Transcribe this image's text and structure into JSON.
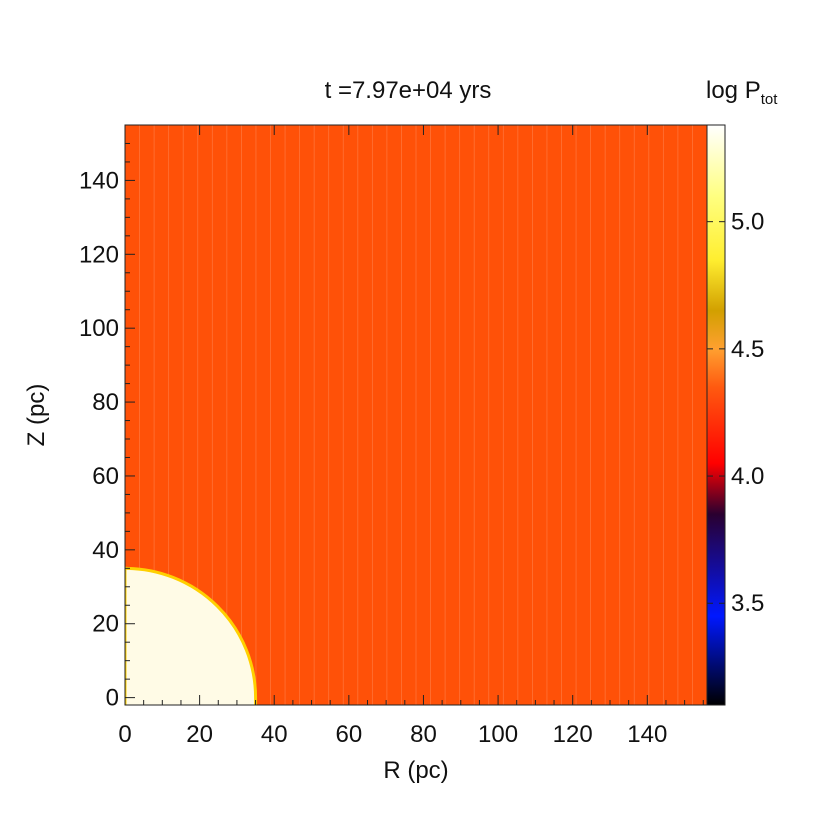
{
  "chart_data": {
    "type": "heatmap",
    "title": "t =7.97e+04 yrs",
    "xlabel": "R (pc)",
    "ylabel": "Z (pc)",
    "xlim": [
      0,
      156
    ],
    "ylim": [
      -2,
      155
    ],
    "x_ticks": [
      0,
      20,
      40,
      60,
      80,
      100,
      120,
      140
    ],
    "y_ticks": [
      0,
      20,
      40,
      60,
      80,
      100,
      120,
      140
    ],
    "field": {
      "background_log_P": 4.33,
      "bubble_log_P": 5.3,
      "bubble_radius": 35,
      "bubble_center": [
        0,
        0
      ],
      "background_color": "#ff5108",
      "bubble_color": "#fffbe6",
      "bubble_edge_color": "#ffd000",
      "stripe_color": "#ff9060",
      "stripe_spacing": 3.9
    },
    "colorbar": {
      "label_main": "log P",
      "label_sub": "tot",
      "range": [
        3.1,
        5.38
      ],
      "ticks": [
        3.5,
        4.0,
        4.5,
        5.0
      ],
      "tick_labels": [
        "3.5",
        "4.0",
        "4.5",
        "5.0"
      ],
      "color_stops": [
        {
          "value": 3.1,
          "color": "#000000"
        },
        {
          "value": 3.45,
          "color": "#0018ff"
        },
        {
          "value": 3.85,
          "color": "#2a0030"
        },
        {
          "value": 4.05,
          "color": "#ff0000"
        },
        {
          "value": 4.35,
          "color": "#ff5a10"
        },
        {
          "value": 4.5,
          "color": "#ffa030"
        },
        {
          "value": 4.65,
          "color": "#d2a000"
        },
        {
          "value": 4.85,
          "color": "#ffee30"
        },
        {
          "value": 5.1,
          "color": "#ffff80"
        },
        {
          "value": 5.38,
          "color": "#ffffff"
        }
      ]
    }
  }
}
